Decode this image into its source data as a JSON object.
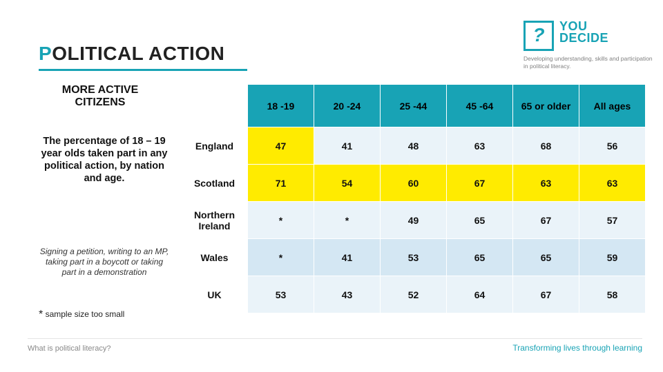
{
  "title": {
    "highlight": "P",
    "rest": "OLITICAL ACTION"
  },
  "logo": {
    "mark": "?",
    "line1": "YOU",
    "line2": "DECIDE",
    "tagline": "Developing understanding, skills and participation in political literacy."
  },
  "subtitle": "MORE ACTIVE CITIZENS",
  "lead": "The percentage of 18 – 19 year olds taken part in any political action, by nation and age.",
  "note": "Signing a petition, writing to an MP, taking part in a boycott or taking part in a demonstration",
  "footnote": {
    "star": "*",
    "text": " sample size too small"
  },
  "footer": {
    "left": "What is political literacy?",
    "right": "Transforming lives through learning"
  },
  "table": {
    "columns": [
      "",
      "18 -19",
      "20 -24",
      "25 -44",
      "45 -64",
      "65 or older",
      "All ages"
    ],
    "rows": [
      {
        "label": "England",
        "values": [
          "47",
          "41",
          "48",
          "63",
          "68",
          "56"
        ],
        "highlight": [
          0
        ]
      },
      {
        "label": "Scotland",
        "values": [
          "71",
          "54",
          "60",
          "67",
          "63",
          "63"
        ],
        "highlight": [
          0,
          1,
          2,
          3,
          4,
          5
        ]
      },
      {
        "label": "Northern Ireland",
        "values": [
          "*",
          "*",
          "49",
          "65",
          "67",
          "57"
        ],
        "highlight": []
      },
      {
        "label": "Wales",
        "values": [
          "*",
          "41",
          "53",
          "65",
          "65",
          "59"
        ],
        "highlight": []
      },
      {
        "label": "UK",
        "values": [
          "53",
          "43",
          "52",
          "64",
          "67",
          "58"
        ],
        "highlight": []
      }
    ],
    "colors": {
      "header_bg": "#18a3b5",
      "row_a": "#eaf3f9",
      "row_b": "#d4e7f3",
      "highlight": "#ffeb00",
      "accent": "#18a3b5"
    }
  }
}
